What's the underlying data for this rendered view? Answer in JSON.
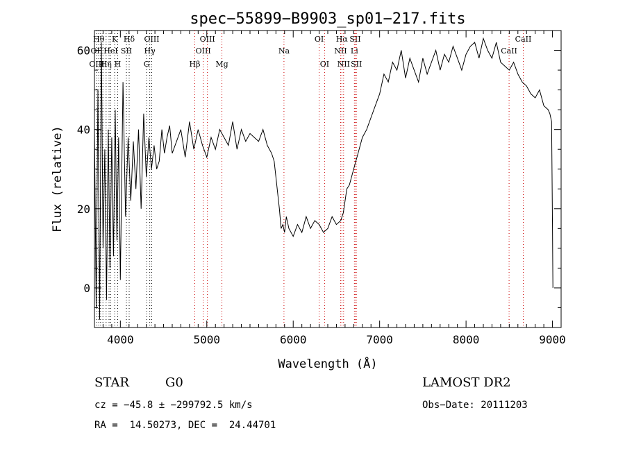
{
  "chart_data": {
    "type": "line",
    "title": "spec−55899−B9903_sp01−217.fits",
    "xlabel": "Wavelength (Å)",
    "ylabel": "Flux (relative)",
    "xlim": [
      3700,
      9100
    ],
    "ylim": [
      -10,
      65
    ],
    "x_ticks": [
      4000,
      5000,
      6000,
      7000,
      8000,
      9000
    ],
    "y_ticks": [
      0,
      20,
      40,
      60
    ],
    "grid": false,
    "series": [
      {
        "x": [
          3700,
          3720,
          3740,
          3760,
          3780,
          3800,
          3820,
          3840,
          3860,
          3880,
          3900,
          3920,
          3940,
          3960,
          3980,
          4000,
          4030,
          4060,
          4090,
          4120,
          4150,
          4180,
          4210,
          4240,
          4270,
          4300,
          4330,
          4360,
          4390,
          4420,
          4450,
          4480,
          4510,
          4540,
          4570,
          4600,
          4650,
          4700,
          4750,
          4800,
          4850,
          4900,
          4950,
          5000,
          5050,
          5100,
          5150,
          5200,
          5250,
          5300,
          5350,
          5400,
          5450,
          5500,
          5550,
          5600,
          5650,
          5700,
          5750,
          5780,
          5800,
          5820,
          5840,
          5860,
          5880,
          5900,
          5920,
          5950,
          6000,
          6050,
          6100,
          6150,
          6200,
          6250,
          6300,
          6350,
          6400,
          6450,
          6500,
          6550,
          6580,
          6600,
          6620,
          6650,
          6700,
          6750,
          6800,
          6850,
          6900,
          6950,
          7000,
          7050,
          7100,
          7150,
          7200,
          7250,
          7300,
          7350,
          7400,
          7450,
          7500,
          7550,
          7600,
          7650,
          7700,
          7750,
          7800,
          7850,
          7900,
          7950,
          8000,
          8050,
          8100,
          8150,
          8200,
          8250,
          8300,
          8350,
          8400,
          8450,
          8500,
          8550,
          8600,
          8650,
          8700,
          8750,
          8800,
          8850,
          8900,
          8950,
          8970,
          8990,
          9000,
          9005
        ],
        "values": [
          40,
          -5,
          50,
          -8,
          62,
          10,
          35,
          -3,
          40,
          5,
          38,
          8,
          45,
          12,
          38,
          2,
          52,
          18,
          38,
          22,
          37,
          25,
          40,
          20,
          44,
          28,
          38,
          30,
          36,
          30,
          32,
          40,
          34,
          38,
          41,
          34,
          37,
          40,
          33,
          42,
          35,
          40,
          36,
          33,
          38,
          35,
          40,
          38,
          36,
          42,
          35,
          40,
          37,
          39,
          38,
          37,
          40,
          36,
          34,
          32,
          28,
          24,
          20,
          15,
          16,
          14,
          18,
          15,
          13,
          16,
          14,
          18,
          15,
          17,
          16,
          14,
          15,
          18,
          16,
          17,
          19,
          22,
          25,
          26,
          30,
          34,
          38,
          40,
          43,
          46,
          49,
          54,
          52,
          57,
          55,
          60,
          53,
          58,
          55,
          52,
          58,
          54,
          57,
          60,
          55,
          59,
          57,
          61,
          58,
          55,
          59,
          61,
          62,
          58,
          63,
          60,
          58,
          62,
          57,
          56,
          55,
          57,
          54,
          52,
          51,
          49,
          48,
          50,
          46,
          45,
          44,
          42,
          15,
          0
        ]
      }
    ],
    "lines": [
      {
        "wl": 3727,
        "labels": [
          "",
          "OII",
          "OIII"
        ],
        "color": "#000000"
      },
      {
        "wl": 3750,
        "labels": [
          "Hθ",
          "",
          ""
        ],
        "color": "#000000"
      },
      {
        "wl": 3771,
        "labels": [
          "",
          "",
          ""
        ],
        "color": "#000000"
      },
      {
        "wl": 3798,
        "labels": [
          "",
          "",
          ""
        ],
        "color": "#000000"
      },
      {
        "wl": 3835,
        "labels": [
          "",
          "",
          "Hη"
        ],
        "color": "#000000"
      },
      {
        "wl": 3869,
        "labels": [
          "",
          "",
          ""
        ],
        "color": "#000000"
      },
      {
        "wl": 3889,
        "labels": [
          "",
          "HeI",
          ""
        ],
        "color": "#000000"
      },
      {
        "wl": 3934,
        "labels": [
          "K",
          "",
          ""
        ],
        "color": "#000000"
      },
      {
        "wl": 3969,
        "labels": [
          "",
          "",
          "H"
        ],
        "color": "#000000"
      },
      {
        "wl": 4070,
        "labels": [
          "",
          "SII",
          ""
        ],
        "color": "#000000"
      },
      {
        "wl": 4102,
        "labels": [
          "Hδ",
          "",
          ""
        ],
        "color": "#000000"
      },
      {
        "wl": 4304,
        "labels": [
          "",
          "",
          "G"
        ],
        "color": "#000000"
      },
      {
        "wl": 4340,
        "labels": [
          "",
          "Hγ",
          ""
        ],
        "color": "#000000"
      },
      {
        "wl": 4363,
        "labels": [
          "OIII",
          "",
          ""
        ],
        "color": "#000000"
      },
      {
        "wl": 4861,
        "labels": [
          "",
          "",
          "Hβ"
        ],
        "color": "#cc0000"
      },
      {
        "wl": 4959,
        "labels": [
          "",
          "OIII",
          ""
        ],
        "color": "#cc0000"
      },
      {
        "wl": 5007,
        "labels": [
          "OIII",
          "",
          ""
        ],
        "color": "#cc0000"
      },
      {
        "wl": 5175,
        "labels": [
          "",
          "",
          "Mg"
        ],
        "color": "#cc0000"
      },
      {
        "wl": 5893,
        "labels": [
          "",
          "Na",
          ""
        ],
        "color": "#cc0000"
      },
      {
        "wl": 6300,
        "labels": [
          "OI",
          "",
          ""
        ],
        "color": "#cc0000"
      },
      {
        "wl": 6363,
        "labels": [
          "",
          "",
          "OI"
        ],
        "color": "#cc0000"
      },
      {
        "wl": 6548,
        "labels": [
          "",
          "NII",
          ""
        ],
        "color": "#cc0000"
      },
      {
        "wl": 6563,
        "labels": [
          "Hα",
          "",
          ""
        ],
        "color": "#cc0000"
      },
      {
        "wl": 6583,
        "labels": [
          "",
          "",
          "NII"
        ],
        "color": "#cc0000"
      },
      {
        "wl": 6708,
        "labels": [
          "",
          "Li",
          ""
        ],
        "color": "#cc0000"
      },
      {
        "wl": 6717,
        "labels": [
          "SII",
          "",
          ""
        ],
        "color": "#cc0000"
      },
      {
        "wl": 6731,
        "labels": [
          "",
          "",
          "SII"
        ],
        "color": "#cc0000"
      },
      {
        "wl": 8498,
        "labels": [
          "",
          "CaII",
          ""
        ],
        "color": "#cc0000"
      },
      {
        "wl": 8662,
        "labels": [
          "CaII",
          "",
          ""
        ],
        "color": "#cc0000"
      }
    ]
  },
  "info": {
    "class": "STAR",
    "subclass": "G0",
    "survey": "LAMOST DR2",
    "cz": "cz = −45.8 ± −299792.5 km/s",
    "obs_date": "Obs−Date: 20111203",
    "radec": "RA =  14.50273, DEC =  24.44701"
  }
}
